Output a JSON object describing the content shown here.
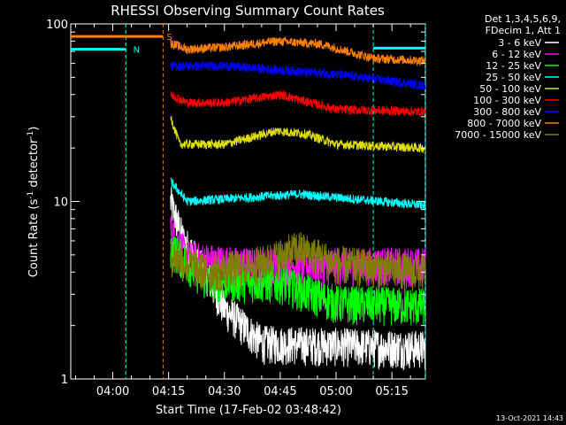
{
  "chart_data": {
    "type": "line",
    "title": "RHESSI Observing Summary Count Rates",
    "xlabel": "Start Time (17-Feb-02 03:48:42)",
    "ylabel_main": "Count Rate (s",
    "ylabel_sup1": "-1",
    "ylabel_mid": " detector",
    "ylabel_sup2": "-1",
    "ylabel_end": ")",
    "y_scale": "log",
    "ylim": [
      1,
      100
    ],
    "xlim": [
      "03:48:42",
      "05:24:00"
    ],
    "x_tick_labels": [
      "04:00",
      "04:15",
      "04:30",
      "04:45",
      "05:00",
      "05:15"
    ],
    "x_ticks_minutes": [
      240,
      255,
      270,
      285,
      300,
      315
    ],
    "y_tick_labels": [
      "1",
      "10",
      "100"
    ],
    "y_ticks": [
      1,
      10,
      100
    ],
    "grid": false,
    "legend_position": "right",
    "legend_header": [
      "Det 1,3,4,5,6,9,",
      "FDecim 1, Att 1"
    ],
    "series": [
      {
        "name": "3 - 6 keV",
        "color": "#ffffff",
        "start_min": 255.5,
        "end_min": 324,
        "level": [
          [
            255.5,
            10
          ],
          [
            259,
            6
          ],
          [
            265,
            4
          ],
          [
            270,
            2.5
          ],
          [
            280,
            1.6
          ],
          [
            324,
            1.5
          ]
        ]
      },
      {
        "name": "6 - 12 keV",
        "color": "#ff00ff",
        "start_min": 255.5,
        "end_min": 324,
        "level": [
          [
            255.5,
            7
          ],
          [
            260,
            4.8
          ],
          [
            275,
            4.4
          ],
          [
            300,
            4.4
          ],
          [
            324,
            4.4
          ]
        ]
      },
      {
        "name": "12 - 25 keV",
        "color": "#00ff00",
        "start_min": 255.5,
        "end_min": 324,
        "level": [
          [
            255.5,
            5.5
          ],
          [
            265,
            3.6
          ],
          [
            285,
            3.5
          ],
          [
            300,
            2.7
          ],
          [
            324,
            2.6
          ]
        ]
      },
      {
        "name": "25 - 50 keV",
        "color": "#00ffff",
        "start_min": 255.5,
        "end_min": 324,
        "level": [
          [
            255.5,
            13
          ],
          [
            260,
            10
          ],
          [
            290,
            11
          ],
          [
            324,
            9.5
          ]
        ]
      },
      {
        "name": "50 - 100 keV",
        "color": "#e0e000",
        "start_min": 255.5,
        "end_min": 324,
        "level": [
          [
            255.5,
            30
          ],
          [
            258,
            21
          ],
          [
            270,
            21
          ],
          [
            284,
            25
          ],
          [
            292,
            24
          ],
          [
            300,
            21
          ],
          [
            324,
            20
          ]
        ]
      },
      {
        "name": "100 - 300 keV",
        "color": "#ff0000",
        "start_min": 255.5,
        "end_min": 324,
        "level": [
          [
            255.5,
            40
          ],
          [
            260,
            36
          ],
          [
            270,
            36
          ],
          [
            285,
            40
          ],
          [
            300,
            33
          ],
          [
            324,
            32
          ]
        ]
      },
      {
        "name": "300 - 800 keV",
        "color": "#0000ff",
        "start_min": 255.5,
        "end_min": 324,
        "level": [
          [
            255.5,
            58
          ],
          [
            270,
            58
          ],
          [
            300,
            52
          ],
          [
            324,
            45
          ]
        ]
      },
      {
        "name": "800 - 7000 keV",
        "color": "#ff8000",
        "start_min": 255.5,
        "end_min": 324,
        "level": [
          [
            255.5,
            78
          ],
          [
            260,
            72
          ],
          [
            270,
            74
          ],
          [
            284,
            80
          ],
          [
            296,
            77
          ],
          [
            310,
            64
          ],
          [
            324,
            62
          ]
        ]
      },
      {
        "name": "7000 - 15000 keV",
        "color": "#808000",
        "start_min": 255.5,
        "end_min": 324,
        "level": [
          [
            255.5,
            5
          ],
          [
            265,
            4
          ],
          [
            280,
            4.5
          ],
          [
            290,
            5.5
          ],
          [
            300,
            4.5
          ],
          [
            324,
            4
          ]
        ]
      }
    ],
    "markers": [
      {
        "label": "N",
        "color": "#00ffff",
        "line_min": 243.5,
        "bar_from_min": 228.7,
        "bar_to_min": 243.5,
        "bar_value": 72,
        "label_min": 245
      },
      {
        "label": "S",
        "color": "#ff8000",
        "line_min": 253.5,
        "bar_from_min": 228.7,
        "bar_to_min": 253.5,
        "bar_value": 85,
        "label_min": 254
      },
      {
        "label": "",
        "color": "#00ffff",
        "line_min": 310,
        "bar_from_min": 310,
        "bar_to_min": 324,
        "bar_value": 73,
        "label_min": 310
      },
      {
        "label": "",
        "color": "#00ffff",
        "line_min": 324,
        "bar_from_min": 324,
        "bar_to_min": 324,
        "bar_value": 73,
        "label_min": 324
      }
    ],
    "footer_date": "13-Oct-2021 14:43"
  }
}
